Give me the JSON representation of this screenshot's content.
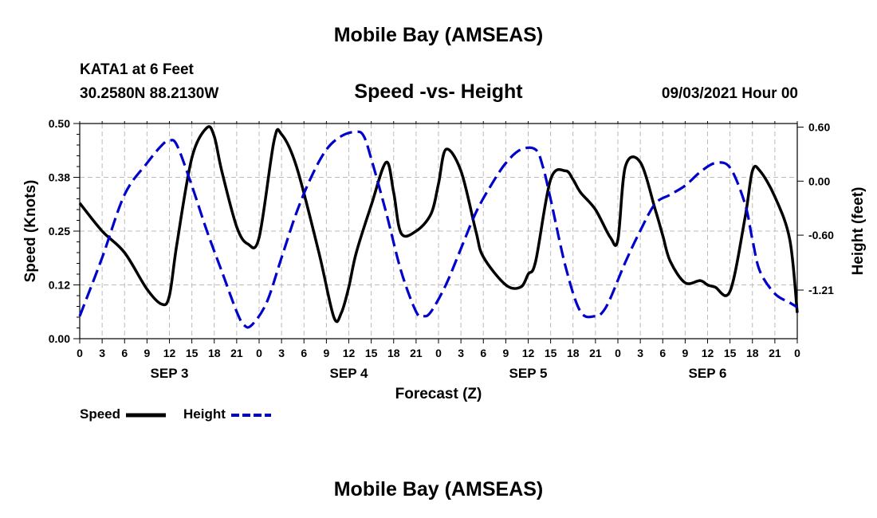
{
  "header": {
    "title": "Mobile Bay (AMSEAS)",
    "station": "KATA1 at 6 Feet",
    "coordinates": "30.2580N  88.2130W",
    "subtitle": "Speed -vs- Height",
    "timestamp": "09/03/2021 Hour 00"
  },
  "footer": {
    "title": "Mobile Bay (AMSEAS)"
  },
  "colors": {
    "speed": "#000000",
    "height": "#0000cc",
    "grid": "#bbbbbb"
  },
  "chart_data": {
    "type": "line",
    "xlabel": "Forecast (Z)",
    "ylabel_left": "Speed (Knots)",
    "ylabel_right": "Height (feet)",
    "xlim": [
      0,
      96
    ],
    "ylim_left": [
      0,
      0.5
    ],
    "ylim_right": [
      -1.75,
      0.64
    ],
    "left_ticks": [
      "0.00",
      "0.12",
      "0.25",
      "0.38",
      "0.50"
    ],
    "left_tick_values": [
      0,
      0.125,
      0.25,
      0.375,
      0.5
    ],
    "right_ticks": [
      "0.60",
      "0.00",
      "-0.60",
      "-1.21"
    ],
    "right_tick_values": [
      0.6,
      0,
      -0.6,
      -1.21
    ],
    "x_tick_labels": [
      "0",
      "3",
      "6",
      "9",
      "12",
      "15",
      "18",
      "21",
      "0",
      "3",
      "6",
      "9",
      "12",
      "15",
      "18",
      "21",
      "0",
      "3",
      "6",
      "9",
      "12",
      "15",
      "18",
      "21",
      "0",
      "3",
      "6",
      "9",
      "12",
      "15",
      "18",
      "21",
      "0"
    ],
    "day_labels": [
      {
        "label": "SEP 3",
        "hour": 12
      },
      {
        "label": "SEP 4",
        "hour": 36
      },
      {
        "label": "SEP 5",
        "hour": 60
      },
      {
        "label": "SEP 6",
        "hour": 84
      }
    ],
    "grid": true,
    "legend": "bottom-left",
    "series": [
      {
        "name": "Speed",
        "axis": "left",
        "style": "solid",
        "x": [
          0,
          3,
          6,
          9,
          11,
          12,
          13,
          15,
          17,
          18,
          19,
          21,
          22.5,
          24,
          26,
          27,
          29,
          32,
          34,
          35,
          36,
          37,
          39,
          41,
          42,
          43,
          45,
          47,
          48,
          49,
          51,
          53,
          54,
          57,
          59,
          60,
          61,
          63,
          65,
          66,
          67,
          69,
          71,
          72,
          73,
          75,
          77,
          78,
          79,
          81,
          83,
          84,
          85,
          87,
          89,
          90,
          91,
          93,
          95,
          96
        ],
        "y": [
          0.315,
          0.25,
          0.2,
          0.115,
          0.08,
          0.1,
          0.22,
          0.42,
          0.49,
          0.47,
          0.39,
          0.26,
          0.22,
          0.235,
          0.46,
          0.475,
          0.4,
          0.2,
          0.05,
          0.06,
          0.12,
          0.2,
          0.31,
          0.41,
          0.34,
          0.245,
          0.25,
          0.29,
          0.36,
          0.44,
          0.39,
          0.25,
          0.19,
          0.125,
          0.12,
          0.15,
          0.18,
          0.37,
          0.39,
          0.37,
          0.34,
          0.3,
          0.235,
          0.23,
          0.4,
          0.41,
          0.3,
          0.24,
          0.18,
          0.13,
          0.135,
          0.125,
          0.12,
          0.11,
          0.28,
          0.39,
          0.39,
          0.33,
          0.23,
          0.06
        ]
      },
      {
        "name": "Height",
        "axis": "right",
        "style": "dashed",
        "x": [
          0,
          3,
          6,
          9,
          11,
          12,
          13,
          15,
          17,
          19,
          21,
          22,
          23,
          25,
          27,
          29,
          31,
          33,
          35,
          37,
          38,
          39,
          41,
          43,
          45,
          46,
          47,
          49,
          51,
          53,
          55,
          57,
          59,
          61,
          62,
          63,
          65,
          67,
          69,
          70,
          71,
          73,
          75,
          77,
          79,
          81,
          83,
          85,
          87,
          89,
          90,
          91,
          93,
          95,
          96
        ],
        "y": [
          -1.5,
          -0.85,
          -0.15,
          0.2,
          0.4,
          0.45,
          0.4,
          -0.05,
          -0.55,
          -1.0,
          -1.45,
          -1.6,
          -1.6,
          -1.35,
          -0.85,
          -0.35,
          0.05,
          0.35,
          0.5,
          0.55,
          0.5,
          0.25,
          -0.35,
          -1.0,
          -1.45,
          -1.5,
          -1.45,
          -1.15,
          -0.75,
          -0.35,
          -0.05,
          0.2,
          0.35,
          0.35,
          0.15,
          -0.2,
          -0.95,
          -1.45,
          -1.5,
          -1.45,
          -1.3,
          -0.9,
          -0.55,
          -0.25,
          -0.15,
          -0.05,
          0.1,
          0.2,
          0.15,
          -0.25,
          -0.65,
          -1.0,
          -1.25,
          -1.35,
          -1.4
        ]
      }
    ]
  },
  "legend_items": [
    {
      "label": "Speed",
      "color": "#000000",
      "style": "solid"
    },
    {
      "label": "Height",
      "color": "#0000cc",
      "style": "dashed"
    }
  ]
}
